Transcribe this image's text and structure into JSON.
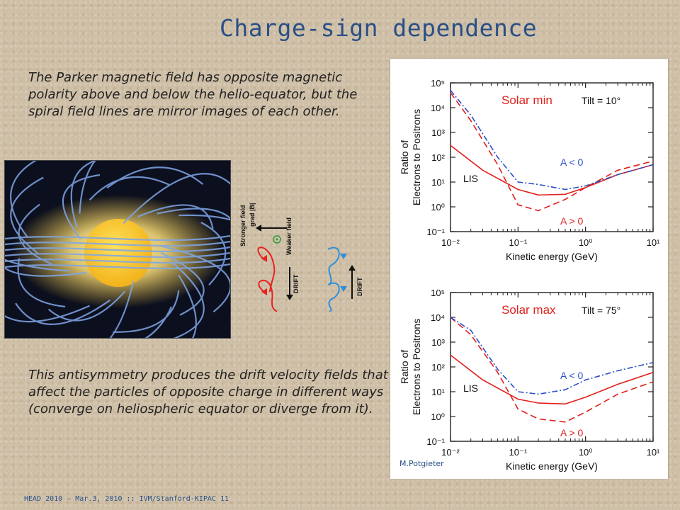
{
  "slide": {
    "title": "Charge-sign dependence",
    "paragraph1": "The Parker magnetic field has opposite magnetic polarity above and below the helio-equator, but the spiral field lines are mirror images of each other.",
    "paragraph2": "This antisymmetry produces the drift velocity fields that affect the particles of opposite charge in different ways (converge on heliospheric equator or diverge from it).",
    "footer": "HEAD 2010 – Mar.3, 2010 :: IVM/Stanford-KIPAC 11",
    "credit": "M.Potgieter"
  },
  "drift_diagram": {
    "stronger_field": "Stronger field",
    "grad_b": "grad |B|",
    "weaker_field": "Weaker field",
    "drift_label": "DRIFT",
    "colors": {
      "negative": "#e8231f",
      "positive": "#2f8fdc",
      "center": "#2e9a3a"
    }
  },
  "chart_data": [
    {
      "type": "line",
      "panel_label": "Solar min",
      "tilt_label": "Tilt = 10°",
      "xlabel": "Kinetic energy (GeV)",
      "ylabel_line1": "Ratio of",
      "ylabel_line2": "Electrons to Positrons",
      "xscale": "log",
      "yscale": "log",
      "xlim": [
        0.01,
        10
      ],
      "ylim": [
        0.1,
        100000
      ],
      "x_ticks": [
        "10⁻²",
        "10⁻¹",
        "10⁰",
        "10¹"
      ],
      "y_ticks": [
        "10⁻¹",
        "10⁰",
        "10¹",
        "10²",
        "10³",
        "10⁴",
        "10⁵"
      ],
      "annotations": {
        "lis": "LIS",
        "a_neg": "A < 0",
        "a_pos": "A > 0"
      },
      "series": [
        {
          "style": "solid",
          "color": "#e0201c",
          "x": [
            0.01,
            0.03,
            0.1,
            0.2,
            0.5,
            1,
            3,
            10
          ],
          "y": [
            300,
            30,
            5,
            3,
            3.2,
            6,
            20,
            50
          ]
        },
        {
          "style": "dashed",
          "color": "#e0201c",
          "x": [
            0.01,
            0.02,
            0.05,
            0.1,
            0.2,
            0.5,
            1,
            3,
            10
          ],
          "y": [
            40000,
            3000,
            50,
            1.2,
            0.7,
            2,
            6,
            30,
            70
          ]
        },
        {
          "style": "dashdot",
          "color": "#2c4fc9",
          "x": [
            0.01,
            0.02,
            0.05,
            0.1,
            0.2,
            0.5,
            1,
            3,
            10
          ],
          "y": [
            50000,
            5000,
            100,
            10,
            8,
            5,
            7,
            20,
            50
          ]
        }
      ]
    },
    {
      "type": "line",
      "panel_label": "Solar max",
      "tilt_label": "Tilt = 75°",
      "xlabel": "Kinetic energy (GeV)",
      "ylabel_line1": "Ratio of",
      "ylabel_line2": "Electrons to Positrons",
      "xscale": "log",
      "yscale": "log",
      "xlim": [
        0.01,
        10
      ],
      "ylim": [
        0.1,
        100000
      ],
      "x_ticks": [
        "10⁻²",
        "10⁻¹",
        "10⁰",
        "10¹"
      ],
      "y_ticks": [
        "10⁻¹",
        "10⁰",
        "10¹",
        "10²",
        "10³",
        "10⁴",
        "10⁵"
      ],
      "annotations": {
        "lis": "LIS",
        "a_neg": "A < 0",
        "a_pos": "A > 0"
      },
      "series": [
        {
          "style": "solid",
          "color": "#e0201c",
          "x": [
            0.01,
            0.03,
            0.1,
            0.2,
            0.5,
            1,
            3,
            10
          ],
          "y": [
            300,
            30,
            5,
            3.5,
            3.2,
            6,
            20,
            60
          ]
        },
        {
          "style": "dashed",
          "color": "#e0201c",
          "x": [
            0.01,
            0.02,
            0.05,
            0.1,
            0.2,
            0.5,
            1,
            3,
            10
          ],
          "y": [
            10000,
            2000,
            60,
            2,
            0.8,
            0.6,
            1.5,
            8,
            25
          ]
        },
        {
          "style": "dashdot",
          "color": "#2c4fc9",
          "x": [
            0.01,
            0.02,
            0.05,
            0.1,
            0.2,
            0.5,
            1,
            3,
            10
          ],
          "y": [
            10000,
            3000,
            80,
            10,
            8,
            12,
            30,
            70,
            150
          ]
        }
      ]
    }
  ]
}
